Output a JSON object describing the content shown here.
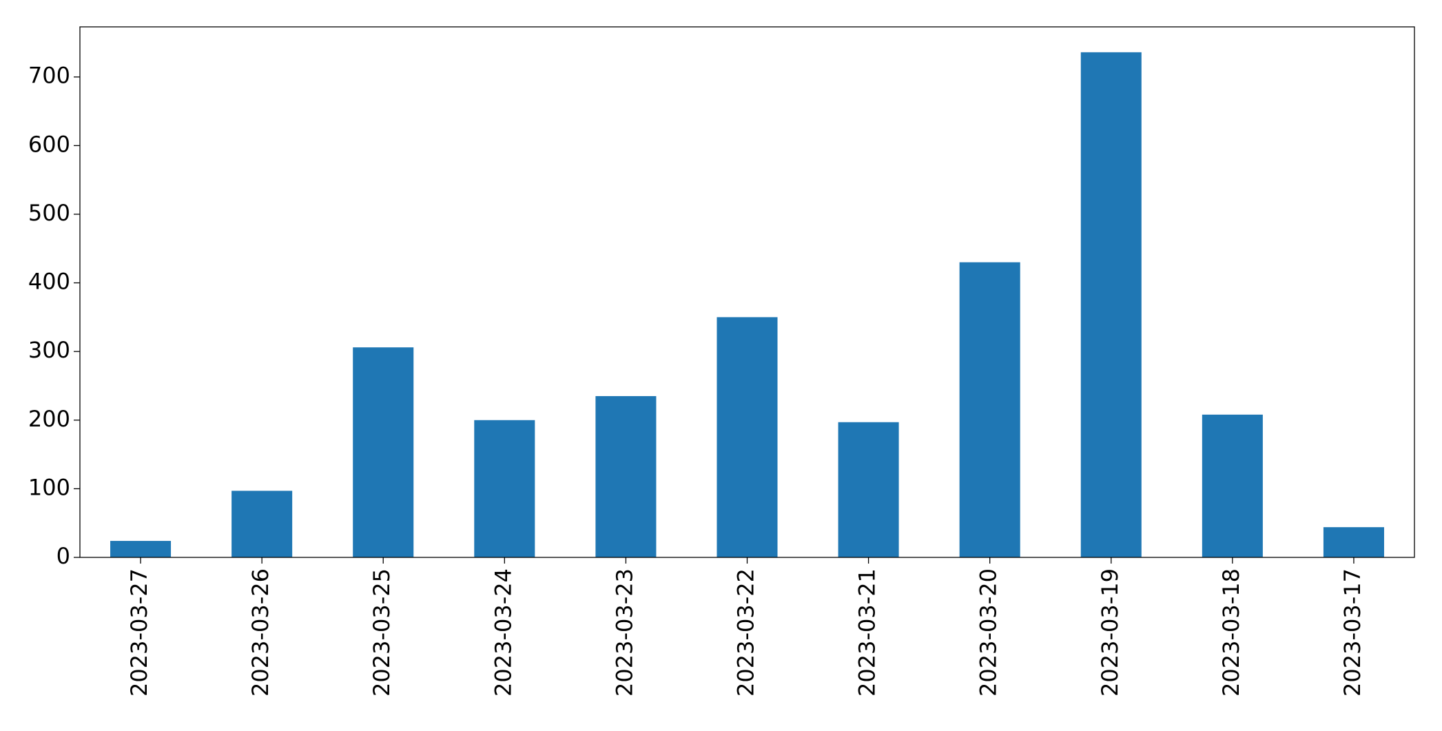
{
  "chart_data": {
    "type": "bar",
    "categories": [
      "2023-03-27",
      "2023-03-26",
      "2023-03-25",
      "2023-03-24",
      "2023-03-23",
      "2023-03-22",
      "2023-03-21",
      "2023-03-20",
      "2023-03-19",
      "2023-03-18",
      "2023-03-17"
    ],
    "values": [
      24,
      97,
      306,
      200,
      235,
      350,
      197,
      430,
      736,
      208,
      44
    ],
    "color": "#1f77b4",
    "ylim": [
      0,
      773
    ],
    "yticks": [
      0,
      100,
      200,
      300,
      400,
      500,
      600,
      700
    ],
    "grid": false
  }
}
